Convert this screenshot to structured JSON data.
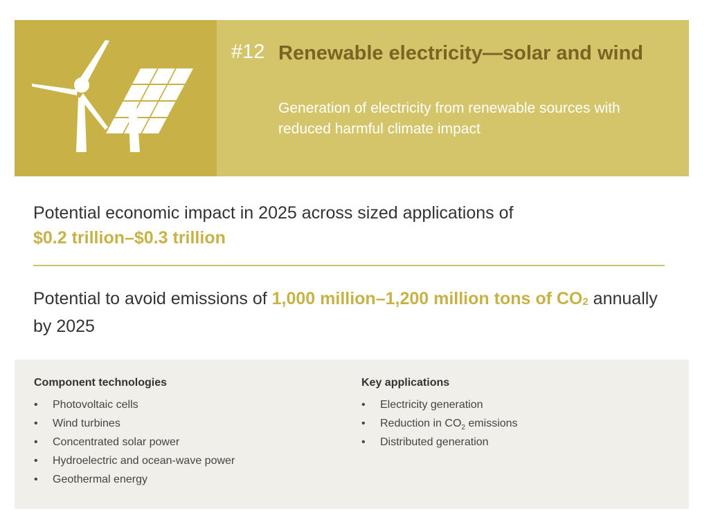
{
  "header": {
    "number": "#12",
    "title": "Renewable electricity—solar and wind",
    "subtitle": "Generation of electricity from renewable sources with reduced harmful climate impact",
    "icon": "wind-turbine-and-solar-panel-icon"
  },
  "impact": {
    "economic_text": "Potential economic impact in 2025 across sized applications of",
    "economic_value": "$0.2 trillion–$0.3 trillion",
    "emissions_prefix": "Potential to avoid emissions of",
    "emissions_value_1": "1,000 million–1,200 million tons of CO",
    "emissions_sub": "2",
    "emissions_suffix": "annually by 2025"
  },
  "component_technologies": {
    "heading": "Component technologies",
    "items": [
      "Photovoltaic cells",
      "Wind turbines",
      "Concentrated solar power",
      "Hydroelectric and ocean-wave power",
      "Geothermal energy"
    ]
  },
  "key_applications": {
    "heading": "Key applications",
    "item_1": "Electricity generation",
    "item_2_before": "Reduction in CO",
    "item_2_sub": "2",
    "item_2_after": "emissions",
    "item_3": "Distributed generation"
  },
  "bullet": "•",
  "colors": {
    "accent": "#c8b248",
    "banner": "#d4c46a",
    "title_text": "#7a6423",
    "panel": "#f0efe9"
  }
}
